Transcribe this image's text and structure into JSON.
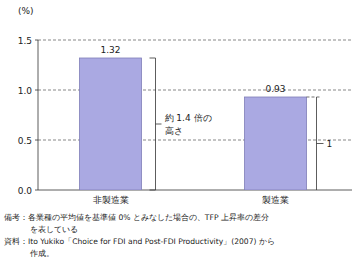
{
  "chart_data": {
    "type": "bar",
    "y_label": "(%)",
    "categories": [
      "非製造業",
      "製造業"
    ],
    "values": [
      1.32,
      0.93
    ],
    "color": "#aaa9e2",
    "data_labels": true,
    "ylim": [
      0,
      1.5
    ],
    "yticks": [
      {
        "value": 0,
        "label": "0.0"
      },
      0.5,
      {
        "value": 1,
        "label": "1.0"
      },
      1.5
    ],
    "grid": true,
    "annotations": [
      "約 1.4 倍の",
      "高さ",
      "1"
    ],
    "footnotes": [
      "備考：各業種の平均値を基準値 0% とみなした場合の、TFP 上昇率の差分",
      "を表している",
      "資料：Ito Yukiko「Choice for FDI and Post-FDI Productivity」(2007) から",
      "作成。"
    ]
  }
}
